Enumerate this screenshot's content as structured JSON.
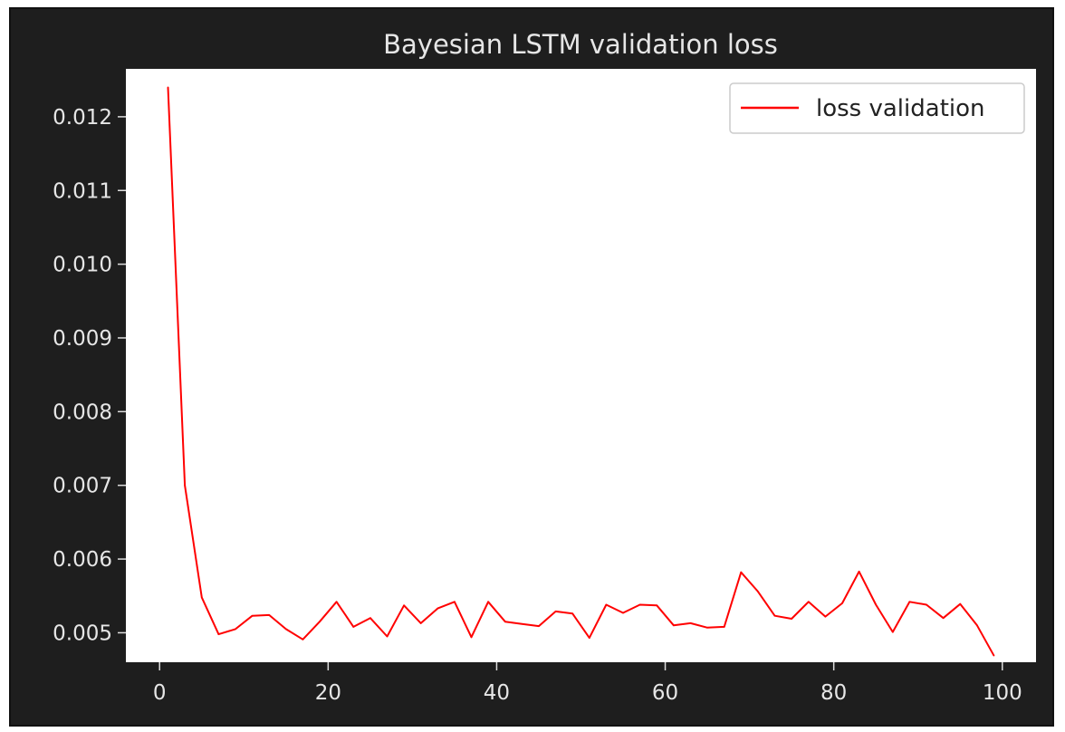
{
  "chart_data": {
    "type": "line",
    "title": "Bayesian LSTM validation loss",
    "xlabel": "",
    "ylabel": "",
    "xlim": [
      -4,
      104
    ],
    "ylim": [
      0.0046,
      0.01265
    ],
    "xticks": [
      0,
      20,
      40,
      60,
      80,
      100
    ],
    "yticks": [
      0.005,
      0.006,
      0.007,
      0.008,
      0.009,
      0.01,
      0.011,
      0.012
    ],
    "ytick_labels": [
      "0.005",
      "0.006",
      "0.007",
      "0.008",
      "0.009",
      "0.010",
      "0.011",
      "0.012"
    ],
    "legend": {
      "position": "top-right"
    },
    "grid": false,
    "series": [
      {
        "name": "loss validation",
        "color": "#ff0000",
        "x": [
          1,
          3,
          5,
          7,
          9,
          11,
          13,
          15,
          17,
          19,
          21,
          23,
          25,
          27,
          29,
          31,
          33,
          35,
          37,
          39,
          41,
          43,
          45,
          47,
          49,
          51,
          53,
          55,
          57,
          59,
          61,
          63,
          65,
          67,
          69,
          71,
          73,
          75,
          77,
          79,
          81,
          83,
          85,
          87,
          89,
          91,
          93,
          95,
          97,
          99
        ],
        "y": [
          0.0124,
          0.007,
          0.00548,
          0.00498,
          0.00505,
          0.00523,
          0.00524,
          0.00505,
          0.00491,
          0.00515,
          0.00542,
          0.00508,
          0.0052,
          0.00495,
          0.00537,
          0.00513,
          0.00533,
          0.00542,
          0.00494,
          0.00542,
          0.00515,
          0.00512,
          0.00509,
          0.00529,
          0.00526,
          0.00493,
          0.00538,
          0.00527,
          0.00538,
          0.00537,
          0.0051,
          0.00513,
          0.00507,
          0.00508,
          0.00582,
          0.00556,
          0.00523,
          0.00519,
          0.00542,
          0.00522,
          0.0054,
          0.00583,
          0.00538,
          0.00501,
          0.00542,
          0.00538,
          0.0052,
          0.00539,
          0.0051,
          0.00469
        ]
      }
    ]
  }
}
